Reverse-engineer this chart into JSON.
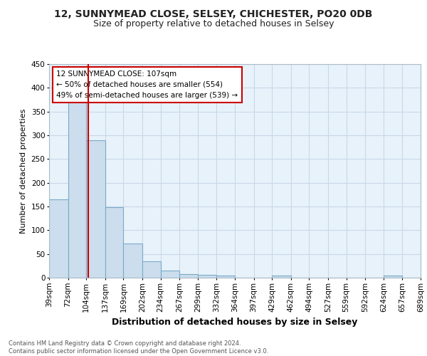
{
  "title1": "12, SUNNYMEAD CLOSE, SELSEY, CHICHESTER, PO20 0DB",
  "title2": "Size of property relative to detached houses in Selsey",
  "xlabel": "Distribution of detached houses by size in Selsey",
  "ylabel": "Number of detached properties",
  "annotation_line1": "12 SUNNYMEAD CLOSE: 107sqm",
  "annotation_line2": "← 50% of detached houses are smaller (554)",
  "annotation_line3": "49% of semi-detached houses are larger (539) →",
  "footer1": "Contains HM Land Registry data © Crown copyright and database right 2024.",
  "footer2": "Contains public sector information licensed under the Open Government Licence v3.0.",
  "bar_color": "#ccdded",
  "bar_edge_color": "#7aaac8",
  "grid_color": "#c8d8e8",
  "bg_color": "#e8f2fa",
  "redline_color": "#cc0000",
  "annotation_box_color": "#ffffff",
  "annotation_box_edge": "#cc0000",
  "fig_bg": "#ffffff",
  "redline_x": 107,
  "bins": [
    39,
    72,
    104,
    137,
    169,
    202,
    234,
    267,
    299,
    332,
    364,
    397,
    429,
    462,
    494,
    527,
    559,
    592,
    624,
    657,
    689
  ],
  "counts": [
    165,
    375,
    290,
    148,
    72,
    34,
    15,
    7,
    6,
    4,
    0,
    0,
    5,
    0,
    0,
    0,
    0,
    0,
    4,
    0
  ],
  "tick_labels": [
    "39sqm",
    "72sqm",
    "104sqm",
    "137sqm",
    "169sqm",
    "202sqm",
    "234sqm",
    "267sqm",
    "299sqm",
    "332sqm",
    "364sqm",
    "397sqm",
    "429sqm",
    "462sqm",
    "494sqm",
    "527sqm",
    "559sqm",
    "592sqm",
    "624sqm",
    "657sqm",
    "689sqm"
  ],
  "yticks": [
    0,
    50,
    100,
    150,
    200,
    250,
    300,
    350,
    400,
    450
  ],
  "ylim": [
    0,
    450
  ],
  "title1_fontsize": 10,
  "title2_fontsize": 9,
  "ylabel_fontsize": 8,
  "xlabel_fontsize": 9,
  "tick_fontsize": 7.5,
  "footer_fontsize": 6
}
